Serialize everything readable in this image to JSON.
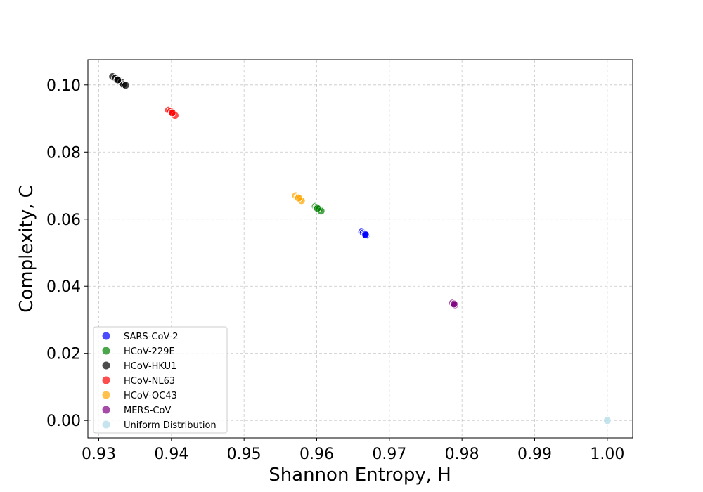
{
  "chart_data": {
    "type": "scatter",
    "title": "",
    "xlabel": "Shannon Entropy, H",
    "ylabel": "Complexity, C",
    "xlim": [
      0.9285,
      1.0035
    ],
    "ylim": [
      -0.0052,
      0.1075
    ],
    "xticks": [
      "0.93",
      "0.94",
      "0.95",
      "0.96",
      "0.97",
      "0.98",
      "0.99",
      "1.00"
    ],
    "yticks": [
      "0.00",
      "0.02",
      "0.04",
      "0.06",
      "0.08",
      "0.10"
    ],
    "grid": true,
    "legend_position": "lower-left",
    "series": [
      {
        "name": "SARS-CoV-2",
        "color": "#0000ff",
        "points": [
          [
            0.9662,
            0.0562
          ],
          [
            0.9664,
            0.0559
          ],
          [
            0.9666,
            0.0556
          ],
          [
            0.9668,
            0.0552
          ],
          [
            0.9667,
            0.0554
          ]
        ]
      },
      {
        "name": "HCoV-229E",
        "color": "#008000",
        "points": [
          [
            0.9598,
            0.0638
          ],
          [
            0.96,
            0.0635
          ],
          [
            0.9603,
            0.063
          ],
          [
            0.9606,
            0.0624
          ],
          [
            0.9601,
            0.0632
          ]
        ]
      },
      {
        "name": "HCoV-HKU1",
        "color": "#000000",
        "points": [
          [
            0.9319,
            0.1025
          ],
          [
            0.9323,
            0.1021
          ],
          [
            0.9327,
            0.1016
          ],
          [
            0.9331,
            0.1008
          ],
          [
            0.9334,
            0.1001
          ],
          [
            0.9337,
            0.0999
          ],
          [
            0.9326,
            0.1015
          ]
        ]
      },
      {
        "name": "HCoV-NL63",
        "color": "#ff0000",
        "points": [
          [
            0.9396,
            0.0925
          ],
          [
            0.9399,
            0.0922
          ],
          [
            0.9402,
            0.0916
          ],
          [
            0.9405,
            0.0909
          ],
          [
            0.9401,
            0.0917
          ]
        ]
      },
      {
        "name": "HCoV-OC43",
        "color": "#ffa500",
        "points": [
          [
            0.9571,
            0.067
          ],
          [
            0.9574,
            0.0665
          ],
          [
            0.9577,
            0.066
          ],
          [
            0.9579,
            0.0655
          ],
          [
            0.9575,
            0.0663
          ]
        ]
      },
      {
        "name": "MERS-CoV",
        "color": "#800080",
        "points": [
          [
            0.9787,
            0.035
          ],
          [
            0.979,
            0.0344
          ],
          [
            0.9789,
            0.0347
          ]
        ]
      },
      {
        "name": "Uniform Distribution",
        "color": "#add8e6",
        "points": [
          [
            1.0,
            0.0
          ]
        ]
      }
    ]
  }
}
